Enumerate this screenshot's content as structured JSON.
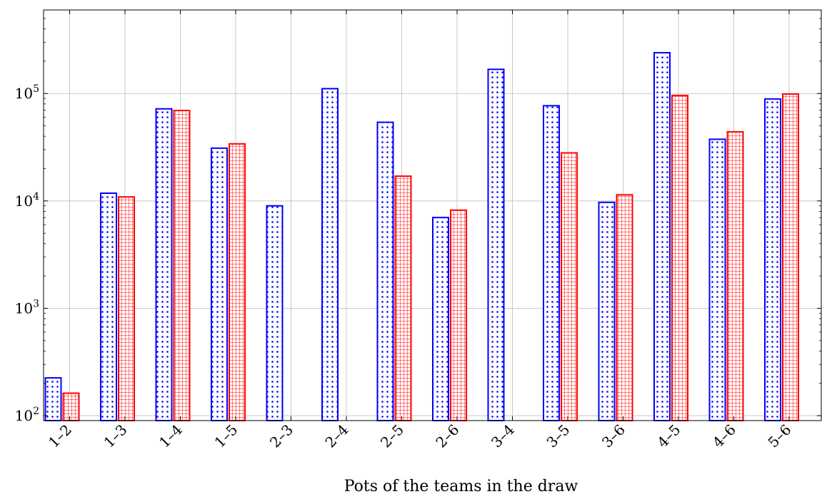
{
  "chart_data": {
    "type": "bar",
    "title": "",
    "xlabel": "Pots of the teams in the draw",
    "ylabel": "",
    "yscale": "log",
    "ylim": [
      90,
      600000
    ],
    "yticks": [
      {
        "value": 100,
        "base": "10",
        "exp": "2"
      },
      {
        "value": 1000,
        "base": "10",
        "exp": "3"
      },
      {
        "value": 10000,
        "base": "10",
        "exp": "4"
      },
      {
        "value": 100000,
        "base": "10",
        "exp": "5"
      }
    ],
    "grid": true,
    "legend": "none",
    "categories": [
      "1–2",
      "1–3",
      "1–4",
      "1–5",
      "2–3",
      "2–4",
      "2–5",
      "2–6",
      "3–4",
      "3–5",
      "3–6",
      "4–5",
      "4–6",
      "5–6"
    ],
    "series": [
      {
        "color": "#0000ff",
        "pattern": "dots",
        "values": [
          225,
          11800,
          72000,
          31000,
          9000,
          111000,
          54000,
          7000,
          168000,
          77000,
          9700,
          240000,
          37500,
          89000
        ]
      },
      {
        "color": "#ff0000",
        "pattern": "grid",
        "values": [
          162,
          10900,
          69500,
          34000,
          null,
          null,
          17000,
          8200,
          null,
          28000,
          11400,
          96000,
          44000,
          99000
        ]
      }
    ]
  }
}
